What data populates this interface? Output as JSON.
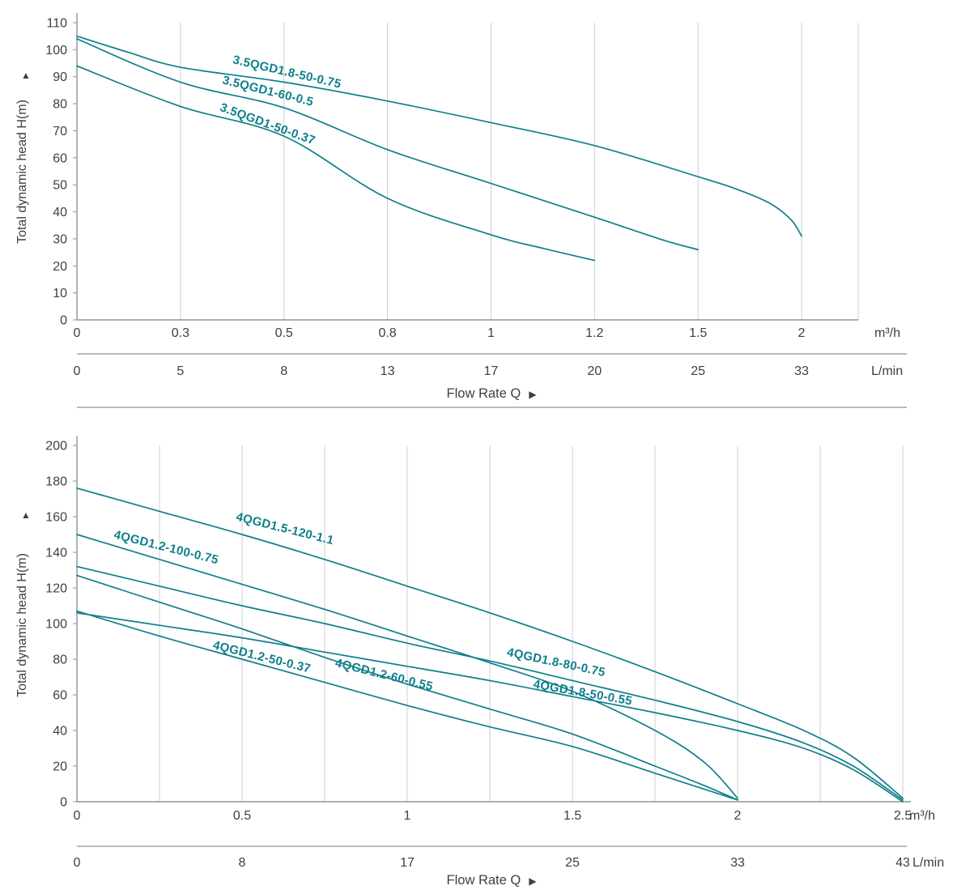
{
  "colors": {
    "curve": "#0e7f8c",
    "curve_label": "#0e7f8c",
    "grid": "#c9d0d4",
    "axis": "#8d9499",
    "separator": "#8d9499",
    "text": "#3c4145"
  },
  "icons": {
    "y_axis_arrow": "▲",
    "x_axis_arrow": "▶"
  },
  "chart_data": [
    {
      "type": "line",
      "title": "",
      "ylabel": "Total dynamic head H(m)",
      "xlabel": "Flow Rate Q",
      "x_unit_primary": "m³/h",
      "x_unit_secondary": "L/min",
      "ylim": [
        0,
        110
      ],
      "y_tick_step": 10,
      "grid": "vertical",
      "grid_minor": false,
      "legend": "labels-on-curves",
      "x_ticks": [
        {
          "value": 0,
          "m3h": "0",
          "lmin": "0"
        },
        {
          "value": 0.3,
          "m3h": "0.3",
          "lmin": "5"
        },
        {
          "value": 0.5,
          "m3h": "0.5",
          "lmin": "8"
        },
        {
          "value": 0.8,
          "m3h": "0.8",
          "lmin": "13"
        },
        {
          "value": 1,
          "m3h": "1",
          "lmin": "17"
        },
        {
          "value": 1.2,
          "m3h": "1.2",
          "lmin": "20"
        },
        {
          "value": 1.5,
          "m3h": "1.5",
          "lmin": "25"
        },
        {
          "value": 2,
          "m3h": "2",
          "lmin": "33"
        }
      ],
      "series": [
        {
          "name": "3.5QGD1.8-50-0.75",
          "points": [
            [
              0,
              105
            ],
            [
              0.15,
              99
            ],
            [
              0.3,
              93.5
            ],
            [
              0.5,
              88
            ],
            [
              0.8,
              81
            ],
            [
              1,
              73
            ],
            [
              1.2,
              64.5
            ],
            [
              1.5,
              53
            ],
            [
              1.7,
              48
            ],
            [
              1.85,
              43
            ],
            [
              1.95,
              37
            ],
            [
              2,
              31
            ]
          ],
          "label": {
            "x": 0.4,
            "y": 95,
            "angle": 13
          }
        },
        {
          "name": "3.5QGD1-60-0.5",
          "points": [
            [
              0,
              104
            ],
            [
              0.3,
              88
            ],
            [
              0.5,
              78.5
            ],
            [
              0.8,
              63
            ],
            [
              1,
              50.5
            ],
            [
              1.2,
              38
            ],
            [
              1.4,
              29.5
            ],
            [
              1.5,
              26
            ]
          ],
          "label": {
            "x": 0.38,
            "y": 87.5,
            "angle": 14
          }
        },
        {
          "name": "3.5QGD1-50-0.37",
          "points": [
            [
              0,
              94
            ],
            [
              0.3,
              79
            ],
            [
              0.5,
              68
            ],
            [
              0.8,
              45
            ],
            [
              1,
              31.5
            ],
            [
              1.1,
              26.5
            ],
            [
              1.2,
              22
            ]
          ],
          "label": {
            "x": 0.375,
            "y": 77.5,
            "angle": 20
          }
        }
      ]
    },
    {
      "type": "line",
      "title": "",
      "ylabel": "Total dynamic head H(m)",
      "xlabel": "Flow Rate Q",
      "x_unit_primary": "m³/h",
      "x_unit_secondary": "L/min",
      "ylim": [
        0,
        200
      ],
      "y_tick_step": 20,
      "grid": "vertical",
      "grid_minor": true,
      "legend": "labels-on-curves",
      "x_ticks": [
        {
          "value": 0,
          "m3h": "0",
          "lmin": "0"
        },
        {
          "value": 0.5,
          "m3h": "0.5",
          "lmin": "8"
        },
        {
          "value": 1,
          "m3h": "1",
          "lmin": "17"
        },
        {
          "value": 1.5,
          "m3h": "1.5",
          "lmin": "25"
        },
        {
          "value": 2,
          "m3h": "2",
          "lmin": "33"
        },
        {
          "value": 2.5,
          "m3h": "2.5",
          "lmin": "43"
        }
      ],
      "series": [
        {
          "name": "4QGD1.5-120-1.1",
          "points": [
            [
              0,
              176
            ],
            [
              0.25,
              163
            ],
            [
              0.5,
              150
            ],
            [
              0.75,
              136
            ],
            [
              1,
              121
            ],
            [
              1.25,
              106
            ],
            [
              1.5,
              90
            ],
            [
              1.75,
              73
            ],
            [
              2,
              55
            ],
            [
              2.2,
              40
            ],
            [
              2.35,
              25
            ],
            [
              2.5,
              2
            ]
          ],
          "label": {
            "x": 0.48,
            "y": 158,
            "angle": 14
          }
        },
        {
          "name": "4QGD1.2-100-0.75",
          "points": [
            [
              0,
              150
            ],
            [
              0.25,
              136
            ],
            [
              0.5,
              122
            ],
            [
              0.75,
              108
            ],
            [
              1,
              93
            ],
            [
              1.25,
              78
            ],
            [
              1.5,
              62
            ],
            [
              1.75,
              40
            ],
            [
              1.9,
              22
            ],
            [
              2,
              2
            ]
          ],
          "label": {
            "x": 0.11,
            "y": 148,
            "angle": 14
          }
        },
        {
          "name": "4QGD1.8-80-0.75",
          "points": [
            [
              0,
              132
            ],
            [
              0.25,
              121
            ],
            [
              0.5,
              110
            ],
            [
              0.75,
              100
            ],
            [
              1,
              89
            ],
            [
              1.25,
              79
            ],
            [
              1.5,
              68
            ],
            [
              1.75,
              57
            ],
            [
              2,
              45
            ],
            [
              2.2,
              33
            ],
            [
              2.35,
              20
            ],
            [
              2.5,
              1
            ]
          ],
          "label": {
            "x": 1.3,
            "y": 82,
            "angle": 12
          }
        },
        {
          "name": "4QGD1.2-60-0.55",
          "points": [
            [
              0,
              127
            ],
            [
              0.25,
              112
            ],
            [
              0.5,
              97
            ],
            [
              0.75,
              81
            ],
            [
              1,
              66
            ],
            [
              1.25,
              52
            ],
            [
              1.5,
              38
            ],
            [
              1.75,
              20
            ],
            [
              1.9,
              9
            ],
            [
              2,
              1
            ]
          ],
          "label": {
            "x": 0.78,
            "y": 76,
            "angle": 14
          }
        },
        {
          "name": "4QGD1.2-50-0.37",
          "points": [
            [
              0,
              107
            ],
            [
              0.25,
              93
            ],
            [
              0.5,
              80
            ],
            [
              0.75,
              67
            ],
            [
              1,
              54
            ],
            [
              1.25,
              42
            ],
            [
              1.5,
              31
            ],
            [
              1.75,
              16
            ],
            [
              2,
              1
            ]
          ],
          "label": {
            "x": 0.41,
            "y": 86,
            "angle": 14
          }
        },
        {
          "name": "4QGD1.8-50-0.55",
          "points": [
            [
              0,
              106
            ],
            [
              0.25,
              99
            ],
            [
              0.5,
              92
            ],
            [
              0.75,
              84
            ],
            [
              1,
              76
            ],
            [
              1.25,
              68
            ],
            [
              1.5,
              59
            ],
            [
              1.75,
              50
            ],
            [
              2,
              40
            ],
            [
              2.2,
              30
            ],
            [
              2.35,
              18
            ],
            [
              2.5,
              0
            ]
          ],
          "label": {
            "x": 1.38,
            "y": 64,
            "angle": 10
          }
        }
      ]
    }
  ]
}
